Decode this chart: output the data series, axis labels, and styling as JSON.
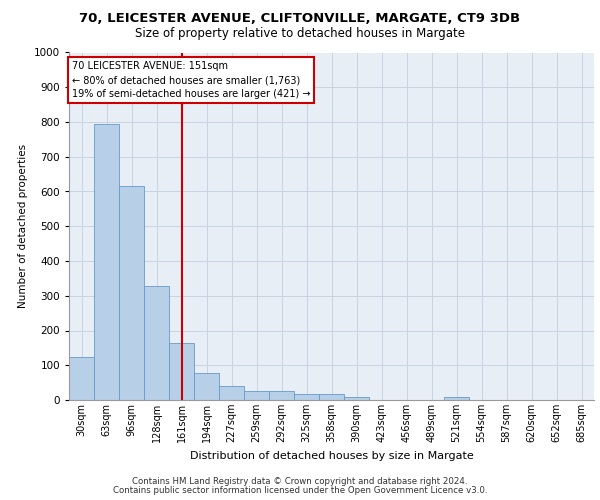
{
  "title1": "70, LEICESTER AVENUE, CLIFTONVILLE, MARGATE, CT9 3DB",
  "title2": "Size of property relative to detached houses in Margate",
  "xlabel": "Distribution of detached houses by size in Margate",
  "ylabel": "Number of detached properties",
  "categories": [
    "30sqm",
    "63sqm",
    "96sqm",
    "128sqm",
    "161sqm",
    "194sqm",
    "227sqm",
    "259sqm",
    "292sqm",
    "325sqm",
    "358sqm",
    "390sqm",
    "423sqm",
    "456sqm",
    "489sqm",
    "521sqm",
    "554sqm",
    "587sqm",
    "620sqm",
    "652sqm",
    "685sqm"
  ],
  "values": [
    125,
    795,
    615,
    328,
    163,
    78,
    40,
    27,
    25,
    17,
    16,
    10,
    0,
    0,
    0,
    10,
    0,
    0,
    0,
    0,
    0
  ],
  "bar_color": "#b8cfe8",
  "bar_edge_color": "#6699cc",
  "redline_index": 4,
  "annotation_title": "70 LEICESTER AVENUE: 151sqm",
  "annotation_line1": "← 80% of detached houses are smaller (1,763)",
  "annotation_line2": "19% of semi-detached houses are larger (421) →",
  "annotation_box_color": "#ffffff",
  "annotation_box_edge": "#cc0000",
  "redline_color": "#cc0000",
  "grid_color": "#c8d4e4",
  "bg_color": "#e8eef6",
  "ylim": [
    0,
    1000
  ],
  "yticks": [
    0,
    100,
    200,
    300,
    400,
    500,
    600,
    700,
    800,
    900,
    1000
  ],
  "footnote1": "Contains HM Land Registry data © Crown copyright and database right 2024.",
  "footnote2": "Contains public sector information licensed under the Open Government Licence v3.0."
}
